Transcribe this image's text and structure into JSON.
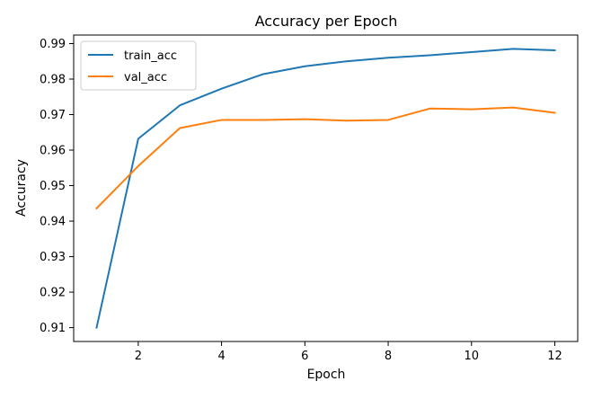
{
  "chart_data": {
    "type": "line",
    "title": "Accuracy per Epoch",
    "xlabel": "Epoch",
    "ylabel": "Accuracy",
    "x": [
      1,
      2,
      3,
      4,
      5,
      6,
      7,
      8,
      9,
      10,
      11,
      12
    ],
    "series": [
      {
        "name": "train_acc",
        "color": "#1f77b4",
        "values": [
          0.91,
          0.9632,
          0.9726,
          0.9773,
          0.9814,
          0.9836,
          0.985,
          0.986,
          0.9867,
          0.9876,
          0.9885,
          0.9881
        ]
      },
      {
        "name": "val_acc",
        "color": "#ff7f0e",
        "values": [
          0.9436,
          0.9555,
          0.9662,
          0.9685,
          0.9685,
          0.9687,
          0.9683,
          0.9685,
          0.9717,
          0.9715,
          0.972,
          0.9705
        ]
      }
    ],
    "xlim": [
      0.45,
      12.55
    ],
    "ylim": [
      0.9061,
      0.9924
    ],
    "xticks": [
      2,
      4,
      6,
      8,
      10,
      12
    ],
    "xtick_labels": [
      "2",
      "4",
      "6",
      "8",
      "10",
      "12"
    ],
    "yticks": [
      0.91,
      0.92,
      0.93,
      0.94,
      0.95,
      0.96,
      0.97,
      0.98,
      0.99
    ],
    "ytick_labels": [
      "0.91",
      "0.92",
      "0.93",
      "0.94",
      "0.95",
      "0.96",
      "0.97",
      "0.98",
      "0.99"
    ],
    "grid": false,
    "legend_position": "top-left"
  }
}
